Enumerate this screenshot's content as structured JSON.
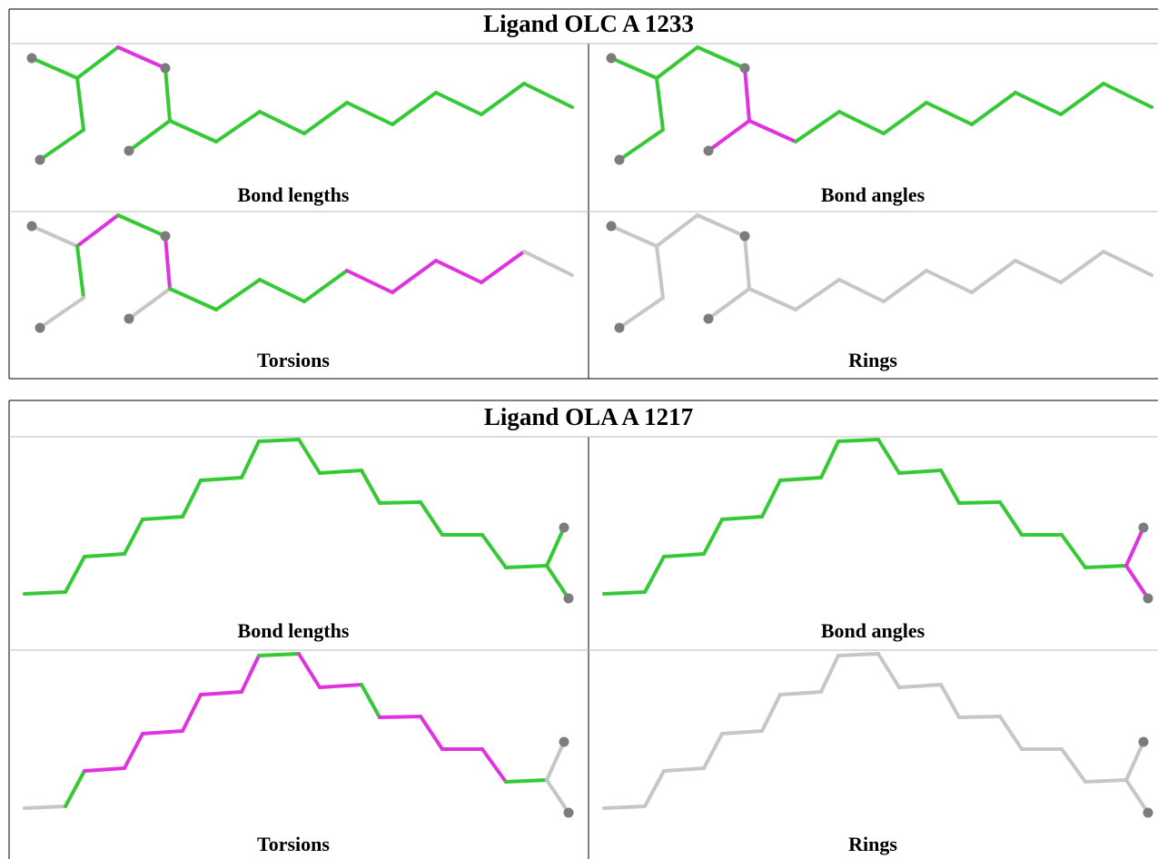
{
  "tables": [
    {
      "title": "Ligand OLC A 1233",
      "panels": [
        "Bond lengths",
        "Bond angles",
        "Torsions",
        "Rings"
      ]
    },
    {
      "title": "Ligand OLA A 1217",
      "panels": [
        "Bond lengths",
        "Bond angles",
        "Torsions",
        "Rings"
      ]
    }
  ]
}
